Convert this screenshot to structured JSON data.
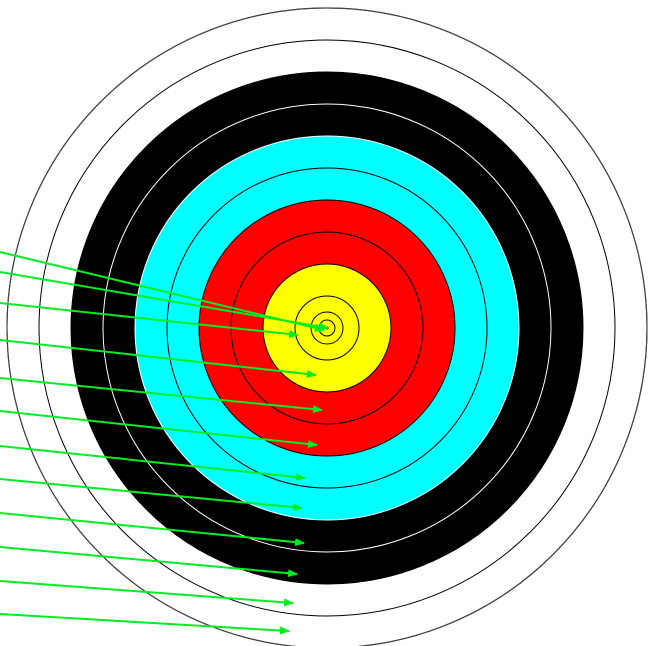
{
  "target": {
    "zones": [
      {
        "name": "white",
        "fill": "#ffffff"
      },
      {
        "name": "black",
        "fill": "#000000"
      },
      {
        "name": "blue",
        "fill": "#00ffff"
      },
      {
        "name": "red",
        "fill": "#ff0000"
      },
      {
        "name": "gold",
        "fill": "#ffff00"
      }
    ],
    "ring_line_colors": {
      "on_light": "#000000",
      "on_black": "#ffffff"
    },
    "ring_count": 10,
    "has_inner_ten": true,
    "center_dot_color": "#ff0000"
  },
  "pointer_arrows": {
    "color": "#00ee22",
    "count": 12
  }
}
